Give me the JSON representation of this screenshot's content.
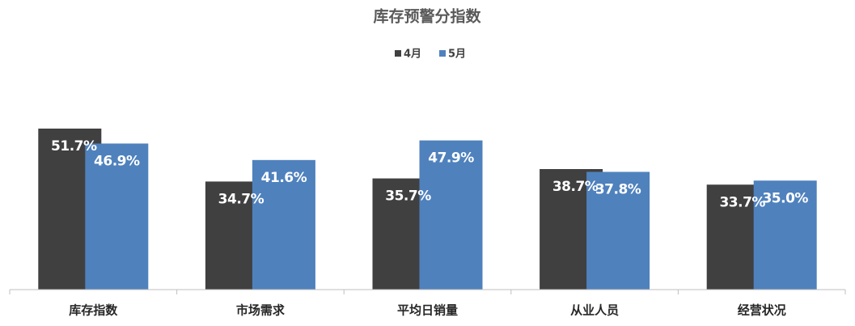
{
  "chart_data": {
    "type": "bar",
    "title": "库存预警分指数",
    "categories": [
      "库存指数",
      "市场需求",
      "平均日销量",
      "从业人员",
      "经营状况"
    ],
    "series": [
      {
        "name": "4月",
        "color": "#404040",
        "values": [
          51.7,
          34.7,
          35.7,
          38.7,
          33.7
        ],
        "value_labels": [
          "51.7%",
          "34.7%",
          "35.7%",
          "38.7%",
          "33.7%"
        ]
      },
      {
        "name": "5月",
        "color": "#4f81bd",
        "values": [
          46.9,
          41.6,
          47.9,
          37.8,
          35.0
        ],
        "value_labels": [
          "46.9%",
          "41.6%",
          "47.9%",
          "37.8%",
          "35.0%"
        ]
      }
    ],
    "ylim": [
      0,
      60
    ],
    "legend": "top"
  }
}
